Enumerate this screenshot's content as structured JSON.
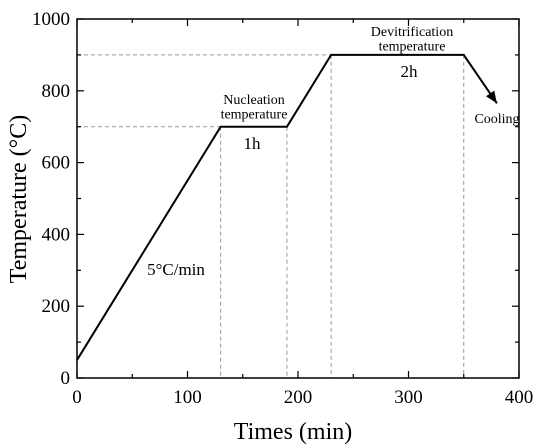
{
  "chart_data": {
    "type": "line",
    "title": "",
    "xlabel": "Times (min)",
    "ylabel": "Temperature (°C)",
    "xlim": [
      0,
      400
    ],
    "ylim": [
      0,
      1000
    ],
    "xticks": [
      "0",
      "100",
      "200",
      "300",
      "400"
    ],
    "yticks": [
      "0",
      "200",
      "400",
      "600",
      "800",
      "1000"
    ],
    "grid": false,
    "series": [
      {
        "x": [
          0,
          130,
          190,
          230,
          350,
          380
        ],
        "y": [
          50,
          700,
          700,
          900,
          900,
          765
        ],
        "color": "#000000"
      }
    ],
    "reference_lines": {
      "horizontal": [
        700,
        900
      ],
      "vertical": [
        130,
        190,
        230,
        350
      ],
      "color": "#999999",
      "style": "dashed"
    },
    "annotations": {
      "ramp_rate": "5°C/min",
      "nucleation": "Nucleation\ntemperature",
      "nucleation_hold": "1h",
      "devitrification": "Devitrification\ntemperature",
      "devitrification_hold": "2h",
      "cooling": "Cooling"
    }
  }
}
